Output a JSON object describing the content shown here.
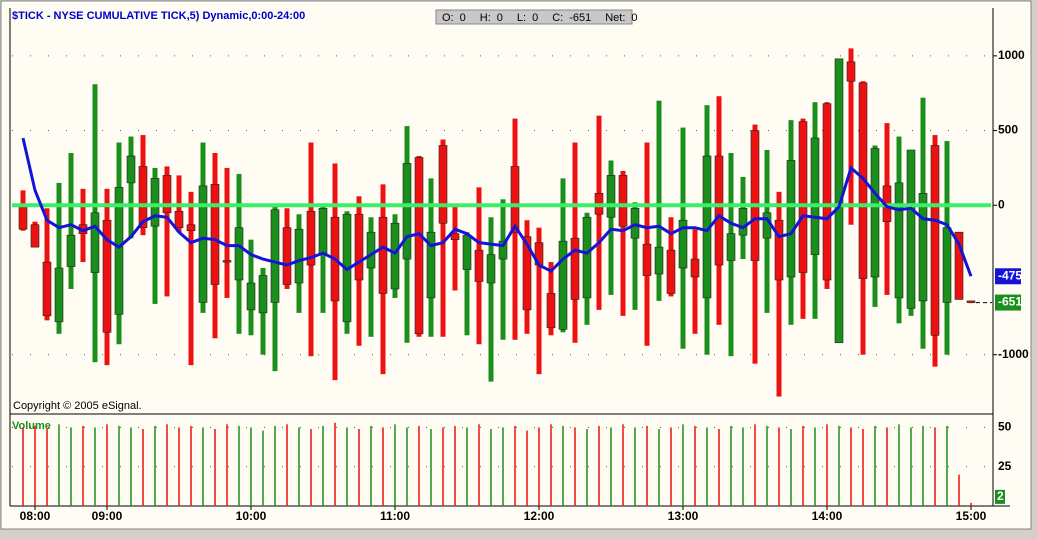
{
  "header": {
    "title": "$TICK - NYSE CUMULATIVE TICK,5) Dynamic,0:00-24:00",
    "quote_box": [
      {
        "label": "O:",
        "value": 0
      },
      {
        "label": "H:",
        "value": 0
      },
      {
        "label": "L:",
        "value": 0
      },
      {
        "label": "C:",
        "value": -651
      },
      {
        "label": "Net:",
        "value": 0
      }
    ],
    "copyright": "Copyright © 2005 eSignal."
  },
  "chart_data": [
    {
      "type": "candlestick",
      "categories": [
        null,
        "08:00",
        null,
        null,
        null,
        null,
        null,
        "09:00",
        null,
        null,
        null,
        null,
        null,
        null,
        null,
        null,
        null,
        null,
        null,
        "10:00",
        null,
        null,
        null,
        null,
        null,
        null,
        null,
        null,
        null,
        null,
        null,
        "11:00",
        null,
        null,
        null,
        null,
        null,
        null,
        null,
        null,
        null,
        null,
        null,
        "12:00",
        null,
        null,
        null,
        null,
        null,
        null,
        null,
        null,
        null,
        null,
        null,
        "13:00",
        null,
        null,
        null,
        null,
        null,
        null,
        null,
        null,
        null,
        null,
        null,
        "14:00",
        null,
        null,
        null,
        null,
        null,
        null,
        null,
        null,
        null,
        null,
        null,
        "15:00"
      ],
      "open": [
        0,
        -130,
        -380,
        -780,
        -410,
        -130,
        -450,
        -100,
        -730,
        150,
        260,
        -140,
        200,
        -40,
        -130,
        -650,
        140,
        -370,
        -500,
        -700,
        -720,
        -650,
        -150,
        -520,
        -40,
        -320,
        -80,
        -780,
        -60,
        -420,
        -80,
        -560,
        -360,
        320,
        -620,
        400,
        -190,
        -430,
        -300,
        -520,
        -360,
        260,
        -210,
        -250,
        -590,
        -830,
        -220,
        -620,
        80,
        -80,
        200,
        -220,
        -260,
        -460,
        -300,
        -420,
        -360,
        -620,
        330,
        -370,
        -200,
        500,
        -220,
        -100,
        -480,
        560,
        -330,
        680,
        -920,
        960,
        820,
        -480,
        130,
        -620,
        -690,
        -640,
        400,
        -650,
        -180,
        -640
      ],
      "high": [
        100,
        -110,
        -20,
        150,
        350,
        110,
        810,
        110,
        420,
        460,
        470,
        250,
        260,
        200,
        90,
        420,
        350,
        250,
        210,
        -230,
        -420,
        -10,
        -20,
        -60,
        420,
        -10,
        280,
        -40,
        60,
        -80,
        140,
        -60,
        530,
        330,
        180,
        440,
        0,
        -180,
        120,
        -80,
        40,
        580,
        -100,
        -150,
        -380,
        180,
        420,
        -50,
        600,
        300,
        230,
        20,
        420,
        700,
        -80,
        520,
        -160,
        670,
        730,
        350,
        190,
        540,
        370,
        90,
        570,
        580,
        690,
        690,
        980,
        1050,
        830,
        400,
        550,
        460,
        370,
        720,
        470,
        430,
        -180,
        -640
      ],
      "low": [
        -170,
        -280,
        -770,
        -860,
        -560,
        -380,
        -1050,
        -1070,
        -930,
        -220,
        -200,
        -660,
        -610,
        -180,
        -1070,
        -720,
        -890,
        -620,
        -860,
        -870,
        -1000,
        -1110,
        -560,
        -720,
        -1010,
        -720,
        -1170,
        -860,
        -940,
        -880,
        -1130,
        -620,
        -920,
        -880,
        -880,
        -880,
        -570,
        -870,
        -930,
        -1180,
        -900,
        -900,
        -860,
        -1130,
        -870,
        -850,
        -920,
        -800,
        -700,
        -600,
        -740,
        -700,
        -940,
        -640,
        -610,
        -960,
        -860,
        -1000,
        -800,
        -1010,
        -360,
        -1060,
        -720,
        -1280,
        -800,
        -760,
        -760,
        -560,
        -920,
        -130,
        -1000,
        -680,
        -600,
        -790,
        -740,
        -960,
        -1080,
        -1000,
        -630,
        -655
      ],
      "close": [
        -160,
        -280,
        -740,
        -420,
        -200,
        -190,
        -50,
        -850,
        120,
        330,
        -150,
        180,
        -50,
        -150,
        -170,
        130,
        -530,
        -380,
        -150,
        -520,
        -470,
        -30,
        -530,
        -160,
        -400,
        -20,
        -640,
        -60,
        -500,
        -180,
        -590,
        -120,
        280,
        -860,
        -180,
        -120,
        -230,
        -200,
        -510,
        -330,
        -240,
        -180,
        -700,
        -400,
        -820,
        -240,
        -630,
        -80,
        -60,
        200,
        -140,
        -20,
        -470,
        -280,
        -590,
        -100,
        -480,
        330,
        -400,
        -190,
        -20,
        -370,
        -50,
        -500,
        300,
        -450,
        450,
        -500,
        980,
        830,
        -490,
        380,
        -110,
        150,
        370,
        80,
        -870,
        -150,
        -630,
        -651
      ],
      "up_color": "#1b8f1b",
      "down_color": "#ee1111",
      "ma": {
        "color": "#1414d8",
        "values": [
          450,
          100,
          -100,
          -150,
          -130,
          -170,
          -140,
          -230,
          -280,
          -210,
          -110,
          -70,
          -80,
          -180,
          -250,
          -220,
          -230,
          -270,
          -270,
          -330,
          -360,
          -380,
          -400,
          -370,
          -350,
          -320,
          -360,
          -430,
          -380,
          -330,
          -280,
          -320,
          -210,
          -190,
          -270,
          -250,
          -160,
          -190,
          -250,
          -260,
          -270,
          -140,
          -260,
          -400,
          -440,
          -360,
          -300,
          -320,
          -250,
          -160,
          -170,
          -130,
          -150,
          -140,
          -190,
          -150,
          -150,
          -170,
          -70,
          -120,
          -150,
          -90,
          -90,
          -210,
          -190,
          -70,
          -80,
          -90,
          -10,
          250,
          180,
          80,
          -10,
          -30,
          -20,
          -90,
          -100,
          -130,
          -260,
          -475
        ]
      },
      "hline": {
        "value": 0,
        "color": "#3cef6a"
      },
      "ylim": [
        -1370,
        1240
      ],
      "yticks": [
        -1000,
        0,
        500,
        1000
      ],
      "grid": true
    },
    {
      "type": "bar",
      "title": "Volume",
      "values": [
        50,
        51,
        49,
        52,
        50,
        51,
        50,
        52,
        51,
        50,
        49,
        51,
        52,
        50,
        51,
        50,
        49,
        52,
        51,
        50,
        48,
        51,
        52,
        50,
        49,
        51,
        53,
        50,
        49,
        51,
        50,
        52,
        50,
        51,
        49,
        50,
        51,
        50,
        52,
        49,
        50,
        51,
        48,
        50,
        52,
        51,
        50,
        49,
        51,
        50,
        52,
        50,
        51,
        49,
        50,
        52,
        51,
        50,
        49,
        51,
        50,
        52,
        51,
        50,
        49,
        51,
        50,
        52,
        51,
        50,
        49,
        51,
        50,
        52,
        50,
        51,
        50,
        51,
        20,
        2
      ],
      "ylim": [
        0,
        56
      ],
      "yticks": [
        25,
        50
      ],
      "grid": true
    }
  ]
}
